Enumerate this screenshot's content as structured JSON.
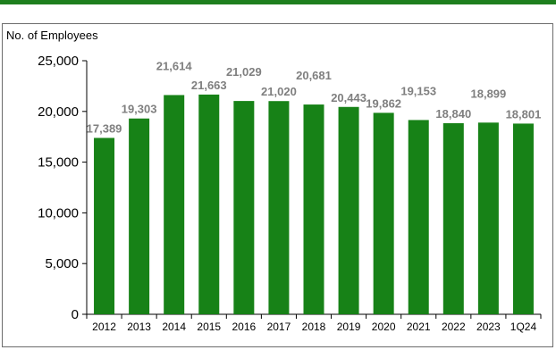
{
  "chart_data": {
    "type": "bar",
    "title": "",
    "ylabel": "No. of Employees",
    "xlabel": "",
    "categories": [
      "2012",
      "2013",
      "2014",
      "2015",
      "2016",
      "2017",
      "2018",
      "2019",
      "2020",
      "2021",
      "2022",
      "2023",
      "1Q24"
    ],
    "values": [
      17389,
      19303,
      21614,
      21663,
      21029,
      21020,
      20681,
      20443,
      19862,
      19153,
      18840,
      18899,
      18801
    ],
    "value_labels": [
      "17,389",
      "19,303",
      "21,614",
      "21,663",
      "21,029",
      "21,020",
      "20,681",
      "20,443",
      "19,862",
      "19,153",
      "18,840",
      "18,899",
      "18,801"
    ],
    "ylim": [
      0,
      25000
    ],
    "yticks": [
      0,
      5000,
      10000,
      15000,
      20000,
      25000
    ],
    "ytick_labels": [
      "0",
      "5,000",
      "10,000",
      "15,000",
      "20,000",
      "25,000"
    ],
    "grid": false,
    "legend": "none",
    "colors": {
      "bar": "#178217",
      "accent_rule": "#1e7f1e",
      "data_label": "#7f7f7f"
    }
  }
}
